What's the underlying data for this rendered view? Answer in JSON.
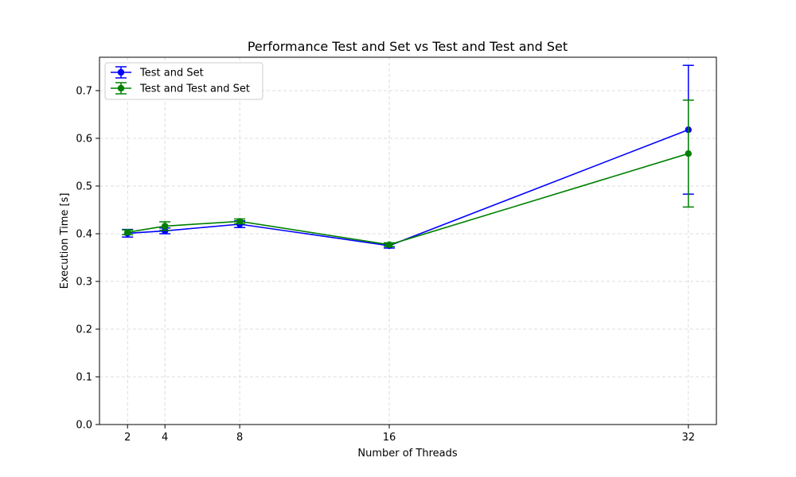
{
  "chart_data": {
    "type": "line",
    "title": "Performance Test and Set vs Test and Test and Set",
    "xlabel": "Number of Threads",
    "ylabel": "Execution Time [s]",
    "x": [
      2,
      4,
      8,
      16,
      32
    ],
    "xticks": [
      "2",
      "4",
      "8",
      "16",
      "32"
    ],
    "xlim": [
      0.5,
      33.5
    ],
    "ylim": [
      0,
      0.77
    ],
    "yticks": [
      "0.0",
      "0.1",
      "0.2",
      "0.3",
      "0.4",
      "0.5",
      "0.6",
      "0.7"
    ],
    "grid": true,
    "legend_position": "top-left",
    "series": [
      {
        "name": "Test and Set",
        "color": "#0000ff",
        "values": [
          0.401,
          0.406,
          0.42,
          0.375,
          0.618
        ],
        "errors": [
          0.008,
          0.006,
          0.007,
          0.005,
          0.135
        ]
      },
      {
        "name": "Test and Test and Set",
        "color": "#008000",
        "values": [
          0.403,
          0.416,
          0.426,
          0.377,
          0.568
        ],
        "errors": [
          0.005,
          0.009,
          0.005,
          0.004,
          0.112
        ]
      }
    ]
  }
}
